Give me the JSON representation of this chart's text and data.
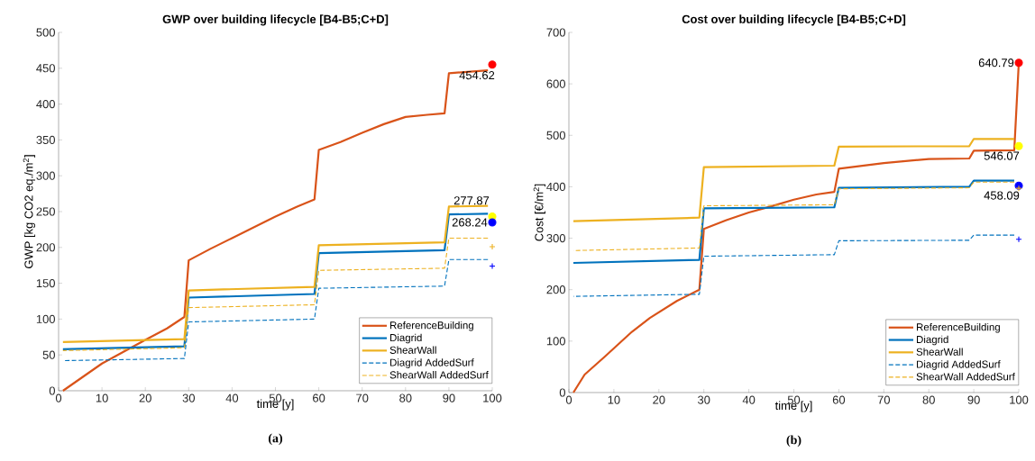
{
  "chart_data": [
    {
      "type": "line",
      "title": "GWP over building lifecycle [B4-B5;C+D]",
      "xlabel": "time [y]",
      "ylabel": "GWP [kg CO2 eq./m$^{2}$]",
      "xlim": [
        0,
        100
      ],
      "xticks": [
        0,
        10,
        20,
        30,
        40,
        50,
        60,
        70,
        80,
        90,
        100
      ],
      "ylim": [
        0,
        500
      ],
      "yticks": [
        0,
        50,
        100,
        150,
        200,
        250,
        300,
        350,
        400,
        450,
        500
      ],
      "legend": "bottom right",
      "annotations": [
        "454.62",
        "277.87",
        "268.24",
        "(a)"
      ],
      "series": [
        {
          "name": "ReferenceBuilding",
          "color": "#d95319",
          "line_style": "solid",
          "x": [
            1,
            10,
            20,
            25,
            29,
            30,
            35,
            40,
            50,
            55,
            59,
            60,
            65,
            70,
            75,
            80,
            85,
            89,
            90,
            99
          ],
          "values": [
            0,
            38,
            71,
            87,
            103,
            182,
            198,
            213,
            243,
            257,
            267,
            336,
            347,
            360,
            372,
            382,
            385,
            387,
            443,
            447
          ]
        },
        {
          "name": "Diagrid",
          "color": "#0072bd",
          "line_style": "solid",
          "x": [
            1,
            29,
            30,
            59,
            60,
            89,
            90,
            99
          ],
          "values": [
            58,
            62,
            130,
            135,
            192,
            196,
            246,
            247
          ]
        },
        {
          "name": "ShearWall",
          "color": "#edb120",
          "line_style": "solid",
          "x": [
            1,
            29,
            30,
            59,
            60,
            89,
            90,
            99
          ],
          "values": [
            68,
            72,
            140,
            145,
            203,
            207,
            257,
            258
          ]
        },
        {
          "name": "Diagrid AddedSurf",
          "color": "#0072bd",
          "line_style": "dashed",
          "x": [
            1,
            29,
            30,
            59,
            60,
            89,
            90,
            99
          ],
          "values": [
            42,
            45,
            96,
            100,
            143,
            146,
            183,
            183
          ]
        },
        {
          "name": "ShearWall AddedSurf",
          "color": "#edb120",
          "line_style": "dashed",
          "x": [
            1,
            29,
            30,
            59,
            60,
            89,
            90,
            99
          ],
          "values": [
            56,
            60,
            116,
            120,
            168,
            171,
            213,
            213
          ]
        },
        {
          "type": "scatter",
          "marker": "circle",
          "color": "#ff0000",
          "x": [
            100
          ],
          "values": [
            455
          ]
        },
        {
          "type": "scatter",
          "marker": "circle",
          "color": "#ffff00",
          "x": [
            100
          ],
          "values": [
            243
          ]
        },
        {
          "type": "scatter",
          "marker": "circle",
          "color": "#0000ff",
          "x": [
            100
          ],
          "values": [
            235
          ]
        },
        {
          "type": "scatter",
          "marker": "cross",
          "color": "#edb120",
          "x": [
            100
          ],
          "values": [
            201
          ]
        },
        {
          "type": "scatter",
          "marker": "cross",
          "color": "#0000ff",
          "x": [
            100
          ],
          "values": [
            174
          ]
        }
      ]
    },
    {
      "type": "line",
      "title": "Cost over building lifecycle [B4-B5;C+D]",
      "xlabel": "time [y]",
      "ylabel": "Cost [€/m$^{2}$]",
      "xlim": [
        0,
        100
      ],
      "xticks": [
        0,
        10,
        20,
        30,
        40,
        50,
        60,
        70,
        80,
        90,
        100
      ],
      "ylim": [
        0,
        700
      ],
      "yticks": [
        0,
        100,
        200,
        300,
        400,
        500,
        600,
        700
      ],
      "legend": "bottom right",
      "annotations": [
        "640.79",
        "546.07",
        "458.09",
        "(b)"
      ],
      "series": [
        {
          "name": "ReferenceBuilding",
          "color": "#d95319",
          "line_style": "solid",
          "x": [
            1,
            3.5,
            8,
            14,
            18,
            24,
            29,
            30,
            35,
            40,
            45,
            50,
            55,
            59,
            60,
            70,
            80,
            89,
            90,
            99,
            100
          ],
          "values": [
            0,
            35,
            70,
            118,
            145,
            178,
            200,
            318,
            335,
            350,
            362,
            375,
            385,
            390,
            435,
            446,
            454,
            455,
            470,
            471,
            641
          ]
        },
        {
          "name": "Diagrid",
          "color": "#0072bd",
          "line_style": "solid",
          "x": [
            1,
            29,
            30,
            59,
            60,
            89,
            90,
            99
          ],
          "values": [
            252,
            258,
            358,
            360,
            398,
            400,
            412,
            412
          ]
        },
        {
          "name": "ShearWall",
          "color": "#edb120",
          "line_style": "solid",
          "x": [
            1,
            29,
            30,
            59,
            60,
            89,
            90,
            99
          ],
          "values": [
            333,
            340,
            438,
            441,
            478,
            479,
            493,
            493
          ]
        },
        {
          "name": "Diagrid AddedSurf",
          "color": "#0072bd",
          "line_style": "dashed",
          "x": [
            1,
            29,
            30,
            59,
            60,
            89,
            90,
            99
          ],
          "values": [
            187,
            191,
            265,
            268,
            295,
            296,
            306,
            306
          ]
        },
        {
          "name": "ShearWall AddedSurf",
          "color": "#edb120",
          "line_style": "dashed",
          "x": [
            1,
            29,
            30,
            59,
            60,
            89,
            90,
            99
          ],
          "values": [
            276,
            281,
            363,
            365,
            396,
            398,
            409,
            409
          ]
        },
        {
          "type": "scatter",
          "marker": "circle",
          "color": "#ff0000",
          "x": [
            100
          ],
          "values": [
            641
          ]
        },
        {
          "type": "scatter",
          "marker": "circle",
          "color": "#ffff00",
          "x": [
            100
          ],
          "values": [
            479
          ]
        },
        {
          "type": "scatter",
          "marker": "circle",
          "color": "#0000ff",
          "x": [
            100
          ],
          "values": [
            402
          ]
        },
        {
          "type": "scatter",
          "marker": "cross",
          "color": "#edb120",
          "x": [
            100
          ],
          "values": [
            397
          ]
        },
        {
          "type": "scatter",
          "marker": "cross",
          "color": "#0000ff",
          "x": [
            100
          ],
          "values": [
            298
          ]
        }
      ]
    }
  ]
}
